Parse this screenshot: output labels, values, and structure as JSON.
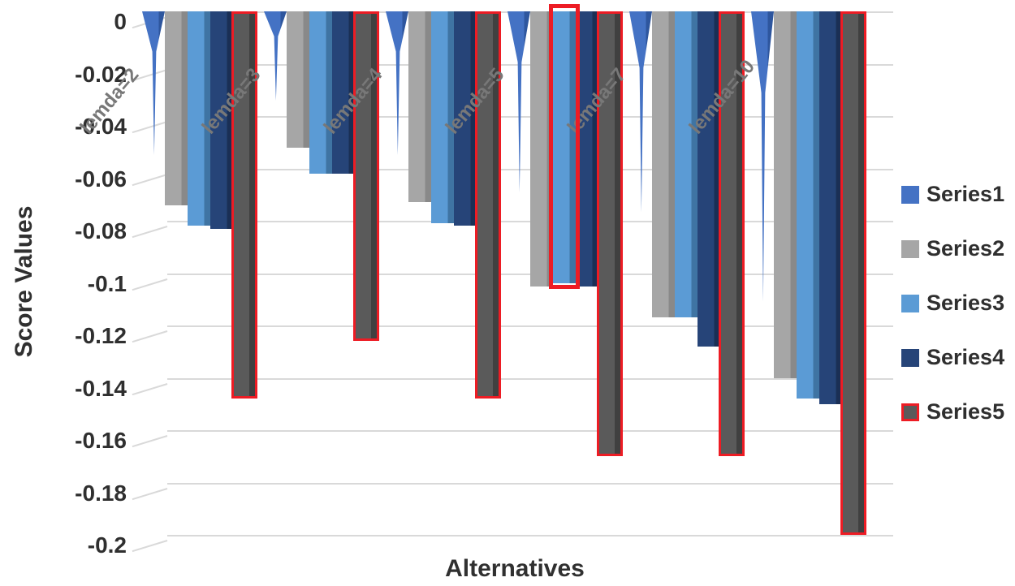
{
  "chart_data": {
    "type": "bar",
    "title": "",
    "xlabel": "Alternatives",
    "ylabel": "Score Values",
    "orientation": "vertical-negative",
    "categories": [
      "lemda=2",
      "lemda=3",
      "lemda=4",
      "lemda=5",
      "lemda=7",
      "lemda=10"
    ],
    "series": [
      {
        "name": "Series1",
        "shape": "spike",
        "color": "#4472c4",
        "shade": "#2e569e",
        "values": [
          -0.055,
          -0.034,
          -0.055,
          -0.069,
          -0.077,
          -0.111
        ]
      },
      {
        "name": "Series2",
        "shape": "column",
        "color": "#a6a6a6",
        "shade": "#898989",
        "values": [
          -0.074,
          -0.052,
          -0.073,
          -0.105,
          -0.117,
          -0.14
        ]
      },
      {
        "name": "Series3",
        "shape": "column",
        "color": "#5b9bd5",
        "shade": "#3f74a3",
        "values": [
          -0.082,
          -0.062,
          -0.081,
          -0.104,
          -0.117,
          -0.148
        ]
      },
      {
        "name": "Series4",
        "shape": "column",
        "color": "#264478",
        "shade": "#1a2f55",
        "values": [
          -0.083,
          -0.062,
          -0.082,
          -0.105,
          -0.128,
          -0.15
        ]
      },
      {
        "name": "Series5",
        "shape": "column",
        "color": "#5a5a5a",
        "shade": "#404040",
        "outline": "#ed1c24",
        "values": [
          -0.146,
          -0.124,
          -0.146,
          -0.168,
          -0.168,
          -0.198
        ]
      }
    ],
    "ylim": [
      -0.2,
      0
    ],
    "ytick_labels": [
      "0",
      "-0.02",
      "-0.04",
      "-0.06",
      "-0.08",
      "-0.1",
      "-0.12",
      "-0.14",
      "-0.16",
      "-0.18",
      "-0.2"
    ],
    "grid": true,
    "gridline_color": "#d9d9d9",
    "legend_position": "right",
    "highlight": {
      "series": "Series3",
      "category": "lemda=5",
      "color": "#ed1c24"
    }
  }
}
